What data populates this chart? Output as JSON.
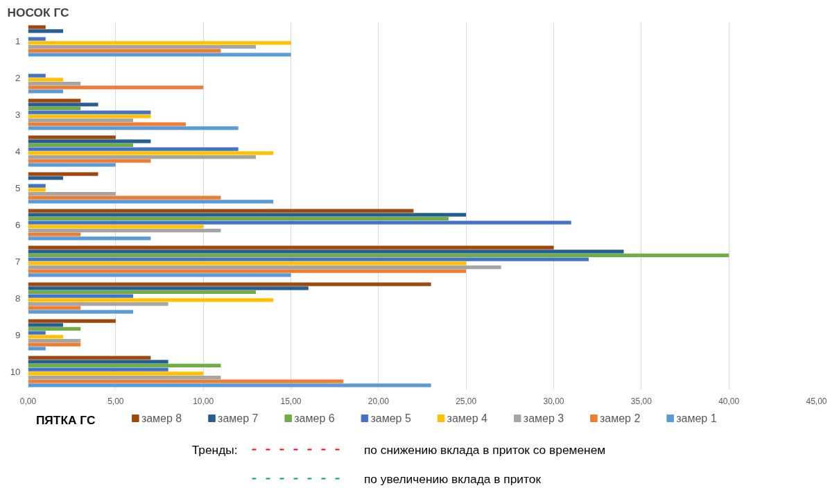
{
  "chart_data": {
    "type": "bar",
    "orientation": "horizontal",
    "title": "НОСОК ГС",
    "categories": [
      "1",
      "2",
      "3",
      "4",
      "5",
      "6",
      "7",
      "8",
      "9",
      "10"
    ],
    "series": [
      {
        "name": "замер 1",
        "color": "#5b9bd5",
        "values": [
          15,
          2,
          12,
          5,
          14,
          7,
          15,
          6,
          1,
          23
        ]
      },
      {
        "name": "замер 2",
        "color": "#ed7d31",
        "values": [
          11,
          10,
          9,
          7,
          11,
          3,
          25,
          3,
          3,
          18
        ]
      },
      {
        "name": "замер 3",
        "color": "#a5a5a5",
        "values": [
          13,
          3,
          6,
          13,
          5,
          11,
          27,
          8,
          3,
          11
        ]
      },
      {
        "name": "замер 4",
        "color": "#ffc000",
        "values": [
          15,
          2,
          7,
          14,
          1,
          10,
          25,
          14,
          2,
          10
        ]
      },
      {
        "name": "замер 5",
        "color": "#4472c4",
        "values": [
          1,
          1,
          7,
          12,
          1,
          31,
          32,
          6,
          1,
          8
        ]
      },
      {
        "name": "замер 6",
        "color": "#70ad47",
        "values": [
          0,
          0,
          3,
          6,
          0,
          24,
          40,
          13,
          3,
          11
        ]
      },
      {
        "name": "замер 7",
        "color": "#255e91",
        "values": [
          2,
          0,
          4,
          7,
          2,
          25,
          34,
          16,
          2,
          8
        ]
      },
      {
        "name": "замер 8",
        "color": "#9e480e",
        "values": [
          1,
          0,
          3,
          5,
          4,
          22,
          30,
          23,
          5,
          7
        ]
      }
    ],
    "xlim": [
      0,
      45
    ],
    "xticks": [
      {
        "value": 0,
        "label": "0,00"
      },
      {
        "value": 5,
        "label": "5,00"
      },
      {
        "value": 10,
        "label": "10,00"
      },
      {
        "value": 15,
        "label": "15,00"
      },
      {
        "value": 20,
        "label": "20,00"
      },
      {
        "value": 25,
        "label": "25,00"
      },
      {
        "value": 30,
        "label": "30,00"
      },
      {
        "value": 35,
        "label": "35,00"
      },
      {
        "value": 40,
        "label": "40,00"
      },
      {
        "value": 45,
        "label": "45,00"
      }
    ],
    "grid": "x",
    "legend": "bottom",
    "annotations": [
      "ПЯТКА ГС",
      "Тренды:",
      "по снижению вклада в приток со временем",
      "по увеличению вклада в приток"
    ]
  }
}
